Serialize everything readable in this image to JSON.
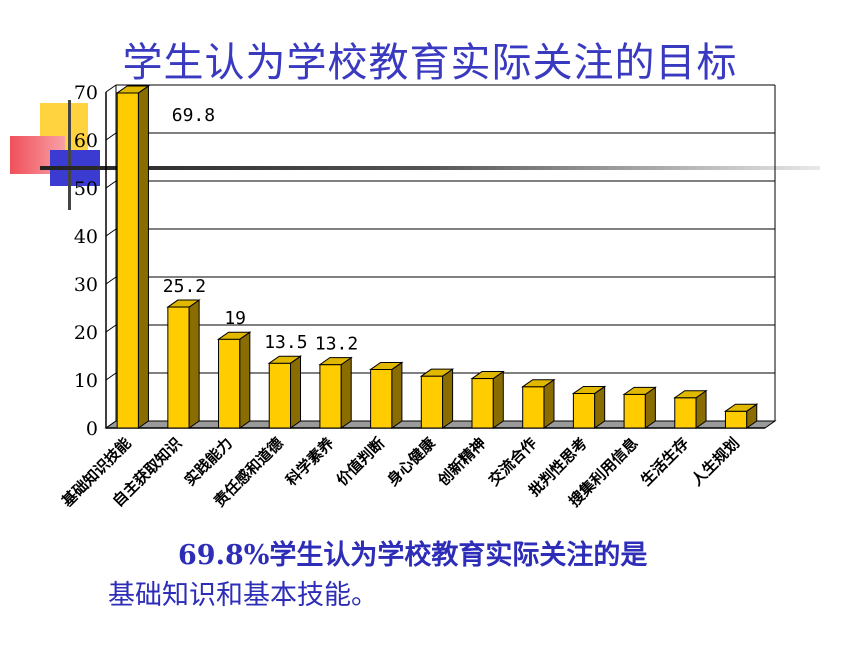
{
  "slide": {
    "title": "学生认为学校教育实际关注的目标",
    "caption_line1": "69.8%学生认为学校教育实际关注的是",
    "caption_line2": "基础知识和基本技能。"
  },
  "colors": {
    "title": "#3a3ac0",
    "bar_front": "#ffcc00",
    "bar_side": "#8a6d00",
    "bar_top": "#e0b800",
    "deco_yellow": "#ffd23f",
    "deco_red": "#f0505a",
    "deco_blue": "#3b3bd1"
  },
  "chart_data": {
    "type": "bar",
    "categories": [
      "基础知识技能",
      "自主获取知识",
      "实践能力",
      "责任感和道德",
      "科学素养",
      "价值判断",
      "身心健康",
      "创新精神",
      "交流合作",
      "批判性思考",
      "搜集利用信息",
      "生活生存",
      "人生规划"
    ],
    "values": [
      69.8,
      25.2,
      18.5,
      13.5,
      13.2,
      12.2,
      10.8,
      10.3,
      8.6,
      7.2,
      7.0,
      6.3,
      3.5
    ],
    "data_labels": [
      "69.8",
      "25.2",
      "19",
      "13.5",
      "13.2",
      "",
      "",
      "",
      "",
      "",
      "",
      "",
      ""
    ],
    "ylim": [
      0,
      70
    ],
    "yticks": [
      0,
      10,
      20,
      30,
      40,
      50,
      60,
      70
    ],
    "grid": true,
    "legend": "none"
  }
}
